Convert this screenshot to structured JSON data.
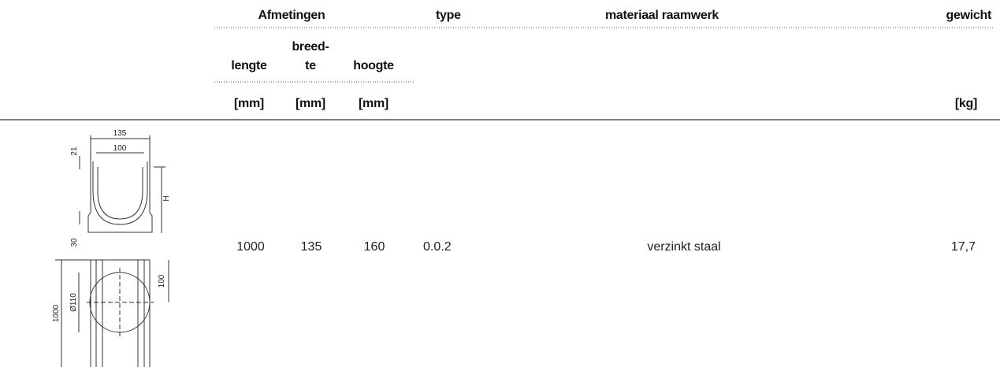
{
  "table": {
    "header": {
      "group": "Afmetingen",
      "type": "type",
      "material": "materiaal raamwerk",
      "weight": "gewicht",
      "columns": [
        [
          "lengte"
        ],
        [
          "breed-",
          "te"
        ],
        [
          "hoogte"
        ]
      ],
      "units": [
        "[mm]",
        "[mm]",
        "[mm]",
        "[kg]"
      ]
    },
    "rows": [
      [
        "1000",
        "135",
        "160",
        "0.0.2",
        "verzinkt staal",
        "17,7"
      ]
    ]
  },
  "drawing": {
    "dims": [
      "135",
      "100",
      "21",
      "H",
      "30",
      "1000",
      "Ø110",
      "100"
    ]
  }
}
